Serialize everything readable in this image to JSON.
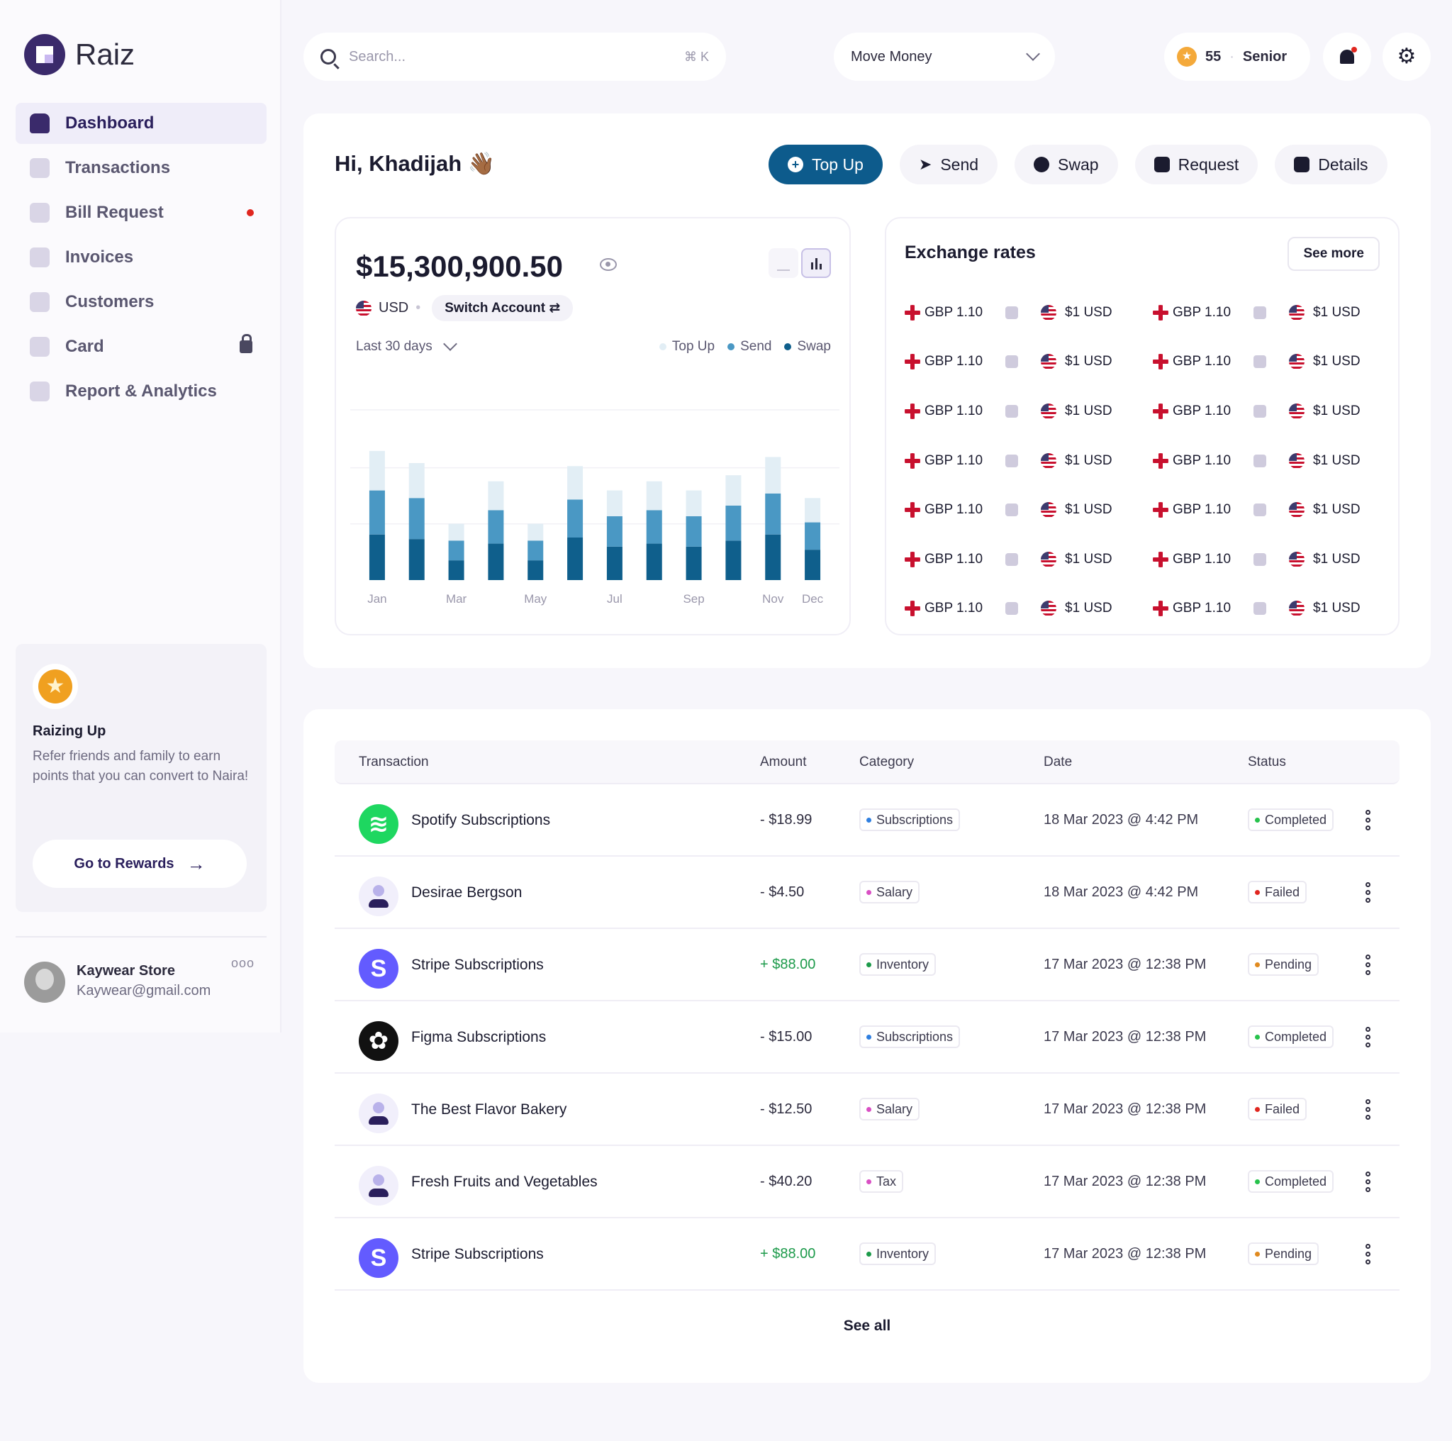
{
  "app": {
    "name": "Raiz"
  },
  "sidebar": {
    "items": [
      {
        "label": "Dashboard",
        "icon": "home-icon",
        "active": true
      },
      {
        "label": "Transactions",
        "icon": "receipt-icon"
      },
      {
        "label": "Bill Request",
        "icon": "bill-icon",
        "badge": "red-dot"
      },
      {
        "label": "Invoices",
        "icon": "invoice-icon"
      },
      {
        "label": "Customers",
        "icon": "users-icon"
      },
      {
        "label": "Card",
        "icon": "card-icon",
        "badge": "lock-icon"
      },
      {
        "label": "Report & Analytics",
        "icon": "chart-icon"
      }
    ],
    "promo": {
      "title": "Raizing Up",
      "text": "Refer friends and family to earn points that you can convert to Naira!",
      "button": "Go to Rewards"
    },
    "profile": {
      "name": "Kaywear Store",
      "email": "Kaywear@gmail.com"
    }
  },
  "topbar": {
    "search_placeholder": "Search...",
    "shortcut": "⌘ K",
    "move_money": "Move Money",
    "points": "55",
    "tier": "Senior"
  },
  "dashboard": {
    "greeting": "Hi, Khadijah 👋🏾",
    "actions": [
      "Top Up",
      "Send",
      "Swap",
      "Request",
      "Details"
    ],
    "balance": "$15,300,900.50",
    "currency": "USD",
    "switch_account": "Switch Account",
    "range": "Last 30 days"
  },
  "chart_data": {
    "type": "bar",
    "stacked": true,
    "categories": [
      "Jan",
      "Feb",
      "Mar",
      "Apr",
      "May",
      "Jun",
      "Jul",
      "Aug",
      "Sep",
      "Oct",
      "Nov",
      "Dec"
    ],
    "tick_labels": [
      "Jan",
      "Mar",
      "May",
      "Jul",
      "Sep",
      "Nov",
      "Dec"
    ],
    "series": [
      {
        "name": "Swap",
        "color": "#0f5f8c",
        "values": [
          30,
          27,
          13,
          24,
          13,
          28,
          22,
          24,
          22,
          26,
          30,
          20
        ]
      },
      {
        "name": "Send",
        "color": "#4a98c4",
        "values": [
          29,
          27,
          13,
          22,
          13,
          25,
          20,
          22,
          20,
          23,
          27,
          18
        ]
      },
      {
        "name": "Top Up",
        "color": "#e2eef5",
        "values": [
          26,
          23,
          11,
          19,
          11,
          22,
          17,
          19,
          17,
          20,
          24,
          16
        ]
      }
    ],
    "ylim": [
      0,
      112
    ],
    "grid": true,
    "legend": "top-right"
  },
  "exchange": {
    "title": "Exchange rates",
    "see_more": "See more",
    "rows": [
      {
        "from": "GBP 1.10",
        "to": "$1 USD"
      },
      {
        "from": "GBP 1.10",
        "to": "$1 USD"
      },
      {
        "from": "GBP 1.10",
        "to": "$1 USD"
      },
      {
        "from": "GBP 1.10",
        "to": "$1 USD"
      },
      {
        "from": "GBP 1.10",
        "to": "$1 USD"
      },
      {
        "from": "GBP 1.10",
        "to": "$1 USD"
      },
      {
        "from": "GBP 1.10",
        "to": "$1 USD"
      },
      {
        "from": "GBP 1.10",
        "to": "$1 USD"
      },
      {
        "from": "GBP 1.10",
        "to": "$1 USD"
      },
      {
        "from": "GBP 1.10",
        "to": "$1 USD"
      },
      {
        "from": "GBP 1.10",
        "to": "$1 USD"
      },
      {
        "from": "GBP 1.10",
        "to": "$1 USD"
      },
      {
        "from": "GBP 1.10",
        "to": "$1 USD"
      },
      {
        "from": "GBP 1.10",
        "to": "$1 USD"
      }
    ]
  },
  "transactions": {
    "columns": [
      "Transaction",
      "Amount",
      "Category",
      "Date",
      "Status"
    ],
    "rows": [
      {
        "name": "Spotify Subscriptions",
        "logo": "spotify",
        "amount": "- $18.99",
        "positive": false,
        "category": "Subscriptions",
        "cat_color": "#2f7fe0",
        "date": "18 Mar 2023 @ 4:42 PM",
        "status": "Completed",
        "status_color": "#27c24c"
      },
      {
        "name": "Desirae Bergson",
        "logo": "user",
        "amount": "- $4.50",
        "positive": false,
        "category": "Salary",
        "cat_color": "#d94fc4",
        "date": "18 Mar 2023 @ 4:42 PM",
        "status": "Failed",
        "status_color": "#e0261f"
      },
      {
        "name": "Stripe Subscriptions",
        "logo": "stripe",
        "amount": "+ $88.00",
        "positive": true,
        "category": "Inventory",
        "cat_color": "#1c9a4a",
        "date": "17 Mar 2023 @ 12:38 PM",
        "status": "Pending",
        "status_color": "#e08a1f"
      },
      {
        "name": "Figma Subscriptions",
        "logo": "figma",
        "amount": "- $15.00",
        "positive": false,
        "category": "Subscriptions",
        "cat_color": "#2f7fe0",
        "date": "17 Mar 2023 @ 12:38 PM",
        "status": "Completed",
        "status_color": "#27c24c"
      },
      {
        "name": "The Best Flavor Bakery",
        "logo": "user",
        "amount": "- $12.50",
        "positive": false,
        "category": "Salary",
        "cat_color": "#d94fc4",
        "date": "17 Mar 2023 @ 12:38 PM",
        "status": "Failed",
        "status_color": "#e0261f"
      },
      {
        "name": "Fresh Fruits and Vegetables",
        "logo": "user",
        "amount": "- $40.20",
        "positive": false,
        "category": "Tax",
        "cat_color": "#d94fc4",
        "date": "17 Mar 2023 @ 12:38 PM",
        "status": "Completed",
        "status_color": "#27c24c"
      },
      {
        "name": "Stripe Subscriptions",
        "logo": "stripe",
        "amount": "+ $88.00",
        "positive": true,
        "category": "Inventory",
        "cat_color": "#1c9a4a",
        "date": "17 Mar 2023 @ 12:38 PM",
        "status": "Pending",
        "status_color": "#e08a1f"
      }
    ],
    "see_all": "See all"
  }
}
